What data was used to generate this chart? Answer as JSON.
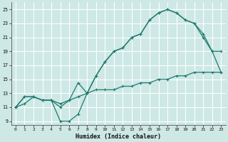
{
  "xlabel": "Humidex (Indice chaleur)",
  "bg_color": "#cde8e5",
  "line_color": "#1e7a6e",
  "grid_color": "#ffffff",
  "xlim": [
    -0.5,
    23.5
  ],
  "ylim": [
    8.5,
    26.0
  ],
  "xticks": [
    0,
    1,
    2,
    3,
    4,
    5,
    6,
    7,
    8,
    9,
    10,
    11,
    12,
    13,
    14,
    15,
    16,
    17,
    18,
    19,
    20,
    21,
    22,
    23
  ],
  "yticks": [
    9,
    11,
    13,
    15,
    17,
    19,
    21,
    23,
    25
  ],
  "line1_x": [
    0,
    1,
    2,
    3,
    4,
    5,
    6,
    7,
    8,
    9,
    10,
    11,
    12,
    13,
    14,
    15,
    16,
    17,
    18,
    19,
    20,
    21,
    22,
    23
  ],
  "line1_y": [
    11,
    11.5,
    12.5,
    12,
    12,
    11.5,
    12,
    12.5,
    13,
    13.5,
    13.5,
    13.5,
    14,
    14,
    14.5,
    14.5,
    15,
    15,
    15.5,
    15.5,
    16,
    16,
    16,
    16
  ],
  "line2_x": [
    0,
    1,
    2,
    3,
    4,
    5,
    6,
    7,
    8,
    9,
    10,
    11,
    12,
    13,
    14,
    15,
    16,
    17,
    18,
    19,
    20,
    21,
    22,
    23
  ],
  "line2_y": [
    11,
    12.5,
    12.5,
    12,
    12,
    11.0,
    12,
    14.5,
    13,
    15.5,
    17.5,
    19,
    19.5,
    21,
    21.5,
    23.5,
    24.5,
    25,
    24.5,
    23.5,
    23,
    21,
    19,
    19
  ],
  "line3_x": [
    0,
    1,
    2,
    3,
    4,
    5,
    6,
    7,
    8,
    9,
    10,
    11,
    12,
    13,
    14,
    15,
    16,
    17,
    18,
    19,
    20,
    21,
    22,
    23
  ],
  "line3_y": [
    11,
    12.5,
    12.5,
    12,
    12,
    9,
    9,
    10,
    13,
    15.5,
    17.5,
    19,
    19.5,
    21,
    21.5,
    23.5,
    24.5,
    25,
    24.5,
    23.5,
    23,
    21.5,
    19,
    16
  ]
}
